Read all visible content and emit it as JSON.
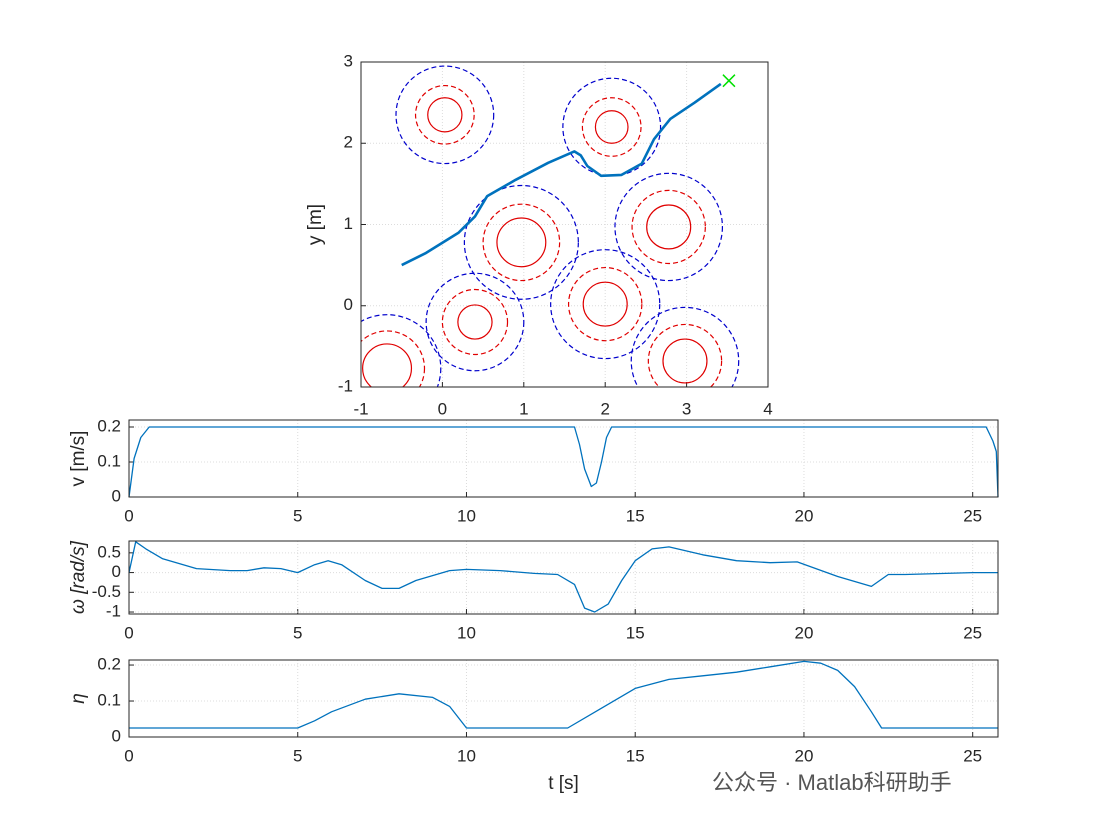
{
  "chart_data": [
    {
      "type": "line",
      "ylabel": "y [m]",
      "xlim": [
        -1,
        4
      ],
      "ylim": [
        -1,
        3
      ],
      "xticks": [
        -1,
        0,
        1,
        2,
        3,
        4
      ],
      "yticks": [
        -1,
        0,
        1,
        2,
        3
      ],
      "grid": true,
      "series": [
        {
          "color": "#0072bd",
          "x": [
            -0.5,
            -0.2,
            0.2,
            0.4,
            0.55,
            0.9,
            1.3,
            1.62,
            1.7,
            1.78,
            1.95,
            2.2,
            2.45,
            2.6,
            2.8,
            3.1,
            3.42
          ],
          "values": [
            0.5,
            0.65,
            0.9,
            1.1,
            1.35,
            1.55,
            1.76,
            1.9,
            1.85,
            1.72,
            1.6,
            1.61,
            1.75,
            2.05,
            2.3,
            2.5,
            2.73
          ]
        }
      ],
      "end_point": {
        "x": 3.52,
        "y": 2.77,
        "color": "#00e000"
      },
      "circle_styles": [
        {
          "color": "#e00000",
          "dashed": false
        },
        {
          "color": "#e00000",
          "dashed": true
        },
        {
          "color": "#0000cc",
          "dashed": true
        }
      ],
      "obstacles": [
        {
          "x": 0.03,
          "y": 2.35,
          "radii": [
            0.21,
            0.36,
            0.6
          ]
        },
        {
          "x": 2.08,
          "y": 2.2,
          "radii": [
            0.2,
            0.36,
            0.6
          ]
        },
        {
          "x": 0.97,
          "y": 0.78,
          "radii": [
            0.3,
            0.47,
            0.7
          ]
        },
        {
          "x": 2.78,
          "y": 0.97,
          "radii": [
            0.27,
            0.45,
            0.66
          ]
        },
        {
          "x": 2.0,
          "y": 0.02,
          "radii": [
            0.27,
            0.45,
            0.67
          ]
        },
        {
          "x": 0.4,
          "y": -0.2,
          "radii": [
            0.21,
            0.4,
            0.6
          ]
        },
        {
          "x": -0.68,
          "y": -0.77,
          "radii": [
            0.3,
            0.46,
            0.66
          ]
        },
        {
          "x": 2.98,
          "y": -0.68,
          "radii": [
            0.27,
            0.45,
            0.66
          ]
        }
      ]
    },
    {
      "type": "line",
      "ylabel": "v [m/s]",
      "xlim": [
        0,
        25.75
      ],
      "ylim": [
        0,
        0.22
      ],
      "xticks": [
        0,
        5,
        10,
        15,
        20,
        25
      ],
      "yticks": [
        0,
        0.1,
        0.2
      ],
      "grid": true,
      "series": [
        {
          "color": "#0072bd",
          "x": [
            0,
            0.15,
            0.35,
            0.6,
            13.2,
            13.35,
            13.5,
            13.7,
            13.85,
            14.0,
            14.15,
            14.3,
            25.4,
            25.6,
            25.7,
            25.75
          ],
          "values": [
            0,
            0.11,
            0.17,
            0.2,
            0.2,
            0.15,
            0.08,
            0.03,
            0.04,
            0.1,
            0.17,
            0.2,
            0.2,
            0.16,
            0.13,
            0
          ]
        }
      ]
    },
    {
      "type": "line",
      "ylabel": "ω [rad/s]",
      "xlim": [
        0,
        25.75
      ],
      "ylim": [
        -1.05,
        0.8
      ],
      "xticks": [
        0,
        5,
        10,
        15,
        20,
        25
      ],
      "yticks": [
        -1,
        -0.5,
        0,
        0.5
      ],
      "grid": true,
      "series": [
        {
          "color": "#0072bd",
          "x": [
            0,
            0.2,
            0.5,
            1,
            2,
            3,
            3.5,
            4,
            4.5,
            5,
            5.5,
            5.9,
            6.3,
            7,
            7.5,
            8,
            8.5,
            9.5,
            10,
            11,
            12,
            12.7,
            13.2,
            13.5,
            13.8,
            14.2,
            14.6,
            15,
            15.5,
            16,
            17,
            18,
            19,
            19.8,
            21,
            22,
            22.5,
            23,
            25,
            25.75
          ],
          "values": [
            0,
            0.78,
            0.6,
            0.35,
            0.1,
            0.05,
            0.05,
            0.12,
            0.1,
            0,
            0.2,
            0.3,
            0.2,
            -0.2,
            -0.4,
            -0.4,
            -0.2,
            0.05,
            0.08,
            0.05,
            -0.02,
            -0.05,
            -0.3,
            -0.9,
            -1.0,
            -0.8,
            -0.2,
            0.3,
            0.6,
            0.65,
            0.45,
            0.3,
            0.25,
            0.27,
            -0.1,
            -0.35,
            -0.05,
            -0.05,
            0,
            0
          ]
        }
      ]
    },
    {
      "type": "line",
      "ylabel": "η",
      "xlabel": "t [s]",
      "xlim": [
        0,
        25.75
      ],
      "ylim": [
        0,
        0.214
      ],
      "xticks": [
        0,
        5,
        10,
        15,
        20,
        25
      ],
      "yticks": [
        0,
        0.1,
        0.2
      ],
      "grid": true,
      "series": [
        {
          "color": "#0072bd",
          "x": [
            0,
            5,
            5.5,
            6,
            7,
            8,
            9,
            9.5,
            10,
            13,
            14,
            15,
            16,
            17,
            18,
            19,
            20,
            20.5,
            21,
            21.5,
            22,
            22.3,
            25.75
          ],
          "values": [
            0.025,
            0.025,
            0.045,
            0.07,
            0.105,
            0.12,
            0.11,
            0.085,
            0.025,
            0.025,
            0.08,
            0.135,
            0.16,
            0.17,
            0.18,
            0.195,
            0.21,
            0.205,
            0.185,
            0.14,
            0.07,
            0.025,
            0.025
          ]
        }
      ]
    }
  ],
  "watermark": "公众号 · Matlab科研助手"
}
